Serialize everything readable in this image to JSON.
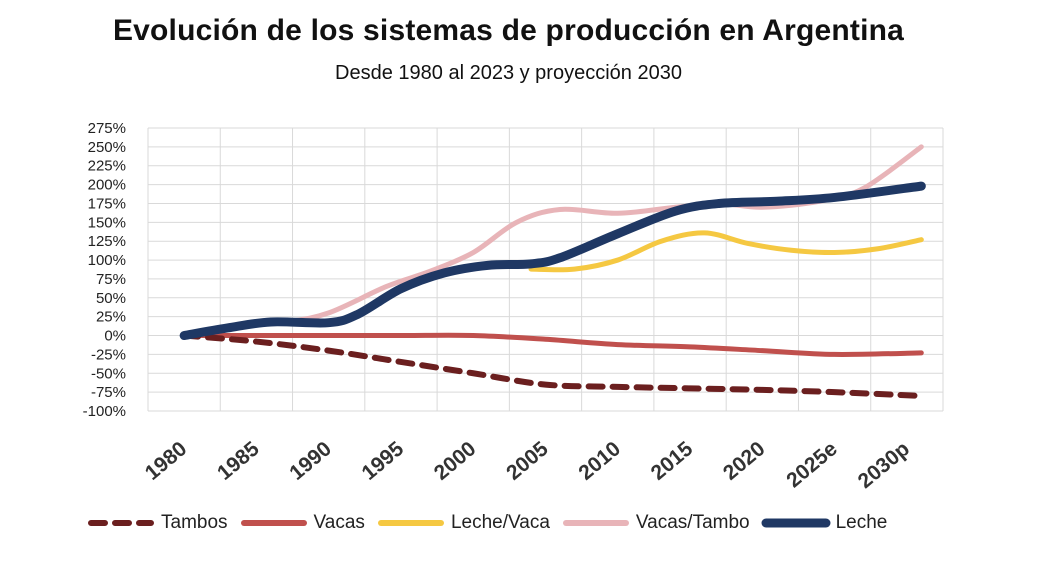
{
  "chart_data": {
    "type": "line",
    "title": "Evolución de los sistemas de producción en Argentina",
    "subtitle": "Desde 1980 al 2023 y proyección 2030",
    "categories": [
      "1980",
      "1985",
      "1990",
      "1995",
      "2000",
      "2005",
      "2010",
      "2015",
      "2020",
      "2025e",
      "2030p"
    ],
    "ylim": [
      -100,
      275
    ],
    "yticks": [
      275,
      250,
      225,
      200,
      175,
      150,
      125,
      100,
      75,
      50,
      25,
      0,
      -25,
      -50,
      -75,
      -100
    ],
    "ytick_labels": [
      "275%",
      "250%",
      "225%",
      "200%",
      "175%",
      "150%",
      "125%",
      "100%",
      "75%",
      "50%",
      "25%",
      "0%",
      "-25%",
      "-50%",
      "-75%",
      "-100%"
    ],
    "grid": true,
    "legend_position": "bottom",
    "series": [
      {
        "name": "Vacas/Tambo",
        "color": "#e8b4b8",
        "style": "solid",
        "x": [
          1980,
          1984,
          1987,
          1990,
          1994,
          1997,
          2000,
          2003,
          2006,
          2010,
          2014,
          2017,
          2020,
          2024,
          2027,
          2031
        ],
        "values": [
          0,
          12,
          18,
          30,
          65,
          85,
          110,
          150,
          167,
          162,
          170,
          175,
          170,
          178,
          195,
          250
        ]
      },
      {
        "name": "Leche/Vaca",
        "color": "#f5c842",
        "style": "solid",
        "x": [
          2004,
          2007,
          2010,
          2013,
          2016,
          2019,
          2022,
          2025,
          2028,
          2031
        ],
        "values": [
          88,
          88,
          100,
          125,
          136,
          122,
          113,
          110,
          115,
          127
        ]
      },
      {
        "name": "Vacas",
        "color": "#c0504d",
        "style": "solid",
        "x": [
          1980,
          1985,
          1990,
          1995,
          2000,
          2005,
          2010,
          2015,
          2020,
          2025,
          2031
        ],
        "values": [
          0,
          0,
          0,
          0,
          0,
          -5,
          -12,
          -15,
          -20,
          -25,
          -23
        ]
      },
      {
        "name": "Tambos",
        "color": "#6b1f1f",
        "style": "dashed",
        "x": [
          1980,
          1985,
          1990,
          1995,
          2000,
          2005,
          2010,
          2015,
          2020,
          2025,
          2031
        ],
        "values": [
          0,
          -8,
          -20,
          -35,
          -50,
          -65,
          -68,
          -70,
          -72,
          -75,
          -80
        ]
      },
      {
        "name": "Leche",
        "color": "#1f3864",
        "style": "solid",
        "x": [
          1980,
          1983,
          1986,
          1990,
          1992,
          1995,
          1998,
          2001,
          2004,
          2006,
          2010,
          2014,
          2017,
          2021,
          2025,
          2031
        ],
        "values": [
          0,
          10,
          18,
          17,
          28,
          62,
          83,
          93,
          95,
          103,
          135,
          165,
          175,
          178,
          183,
          198
        ]
      }
    ],
    "legend_order": [
      "Tambos",
      "Vacas",
      "Leche/Vaca",
      "Vacas/Tambo",
      "Leche"
    ]
  }
}
